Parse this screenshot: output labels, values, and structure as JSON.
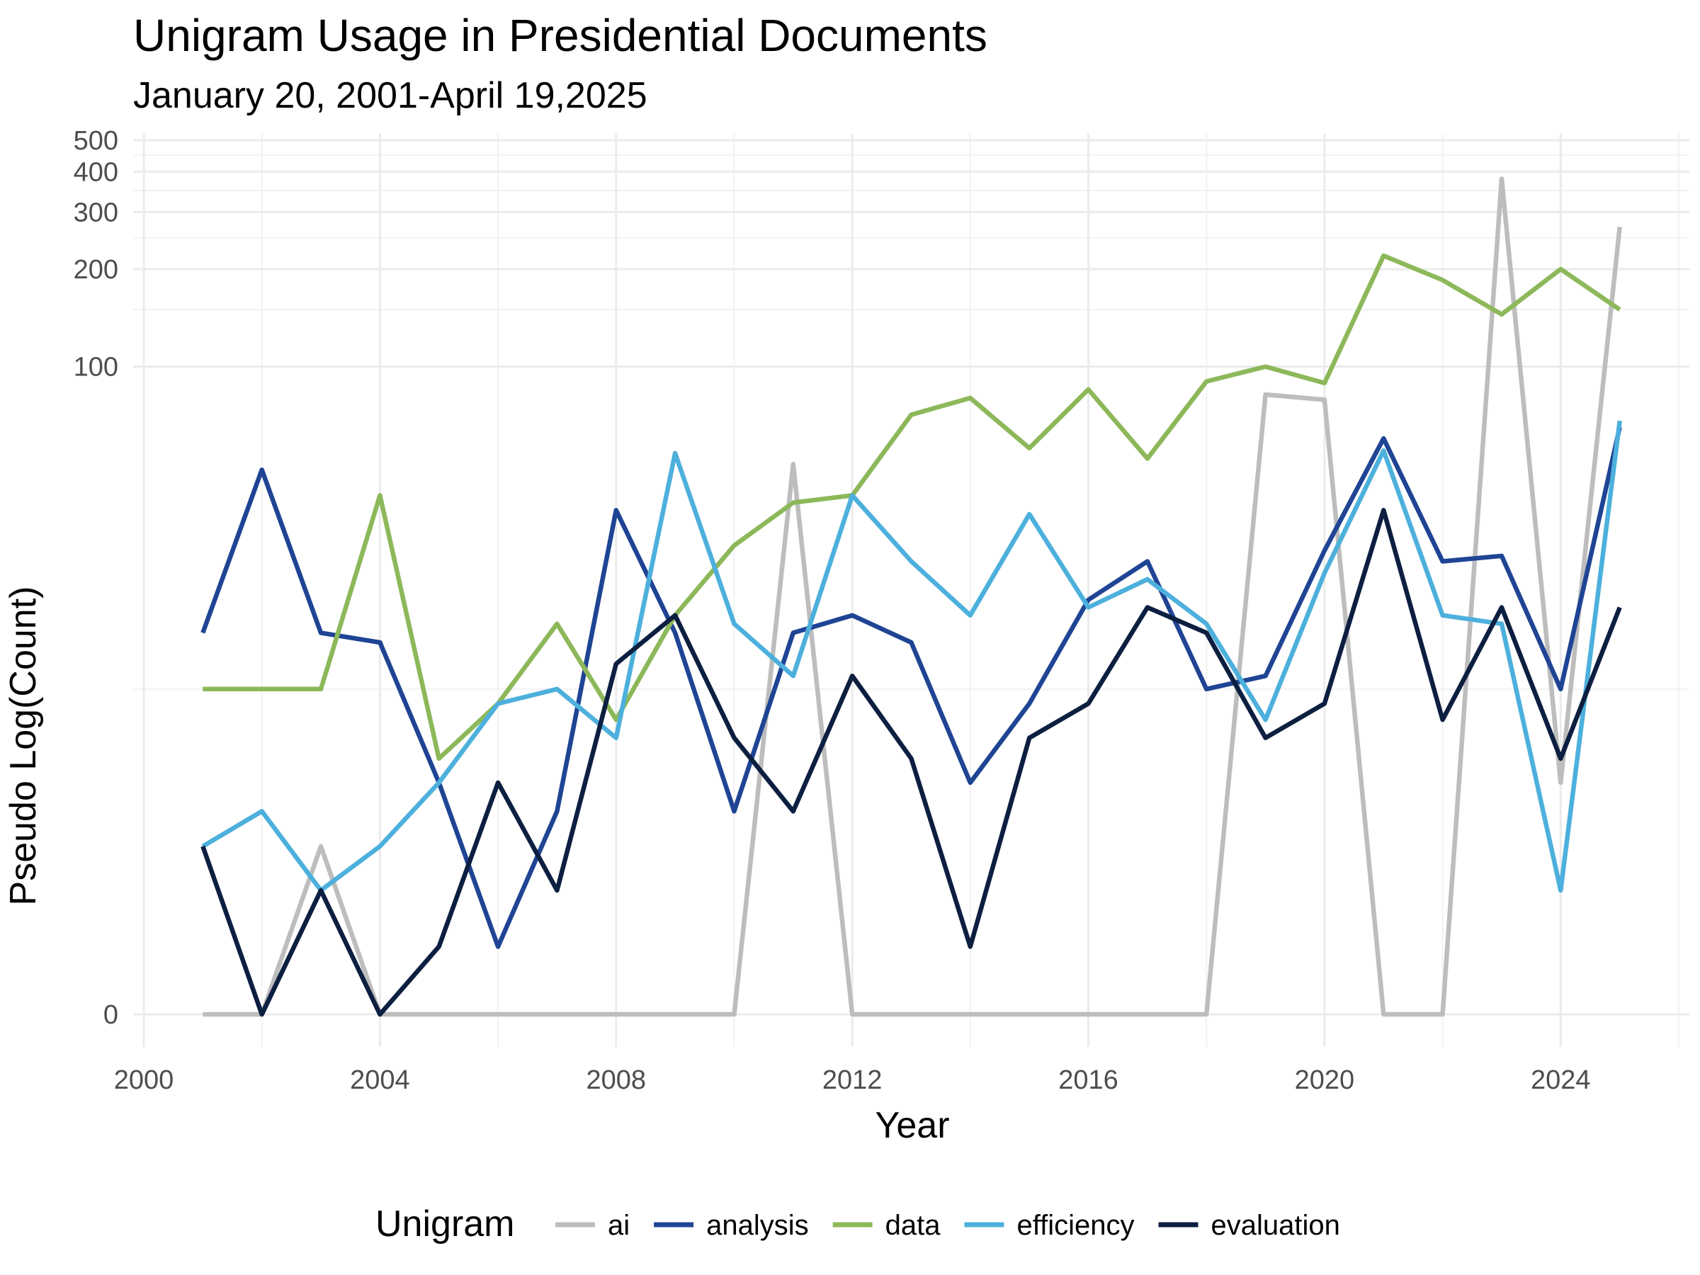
{
  "chart_data": {
    "type": "line",
    "title": "Unigram Usage in Presidential Documents",
    "subtitle": "January 20, 2001-April 19,2025",
    "xlabel": "Year",
    "ylabel": "Pseudo Log(Count)",
    "y_scale": "pseudo-log",
    "xlim": [
      2000,
      2026
    ],
    "ylim": [
      0,
      500
    ],
    "x_ticks": [
      2000,
      2004,
      2008,
      2012,
      2016,
      2020,
      2024
    ],
    "x_tick_labels": [
      "2000",
      "2004",
      "2008",
      "2012",
      "2016",
      "2020",
      "2024"
    ],
    "y_ticks": [
      0,
      100,
      200,
      300,
      400,
      500
    ],
    "y_tick_labels": [
      "0",
      "100",
      "200",
      "300",
      "400",
      "500"
    ],
    "y_minor_ticks": [
      10,
      150,
      250,
      350,
      450
    ],
    "grid": true,
    "legend_title": "Unigram",
    "legend_position": "bottom",
    "x": [
      2001,
      2002,
      2003,
      2004,
      2005,
      2006,
      2007,
      2008,
      2009,
      2010,
      2011,
      2012,
      2013,
      2014,
      2015,
      2016,
      2017,
      2018,
      2019,
      2020,
      2021,
      2022,
      2023,
      2024,
      2025
    ],
    "series": [
      {
        "name": "ai",
        "color": "#bdbdbd",
        "values": [
          0,
          0,
          3,
          0,
          0,
          0,
          0,
          0,
          0,
          0,
          50,
          0,
          0,
          0,
          0,
          0,
          0,
          0,
          82,
          79,
          0,
          0,
          380,
          5,
          270
        ]
      },
      {
        "name": "analysis",
        "color": "#1f4494",
        "values": [
          15,
          48,
          15,
          14,
          5,
          1,
          4,
          36,
          15,
          4,
          15,
          17,
          14,
          5,
          9,
          19,
          25,
          10,
          11,
          27,
          60,
          25,
          26,
          10,
          65
        ]
      },
      {
        "name": "data",
        "color": "#8db85a",
        "values": [
          10,
          10,
          10,
          40,
          6,
          9,
          16,
          8,
          17,
          28,
          38,
          40,
          71,
          80,
          56,
          85,
          52,
          90,
          100,
          89,
          220,
          185,
          145,
          200,
          150
        ]
      },
      {
        "name": "efficiency",
        "color": "#4db0dc",
        "values": [
          3,
          4,
          2,
          3,
          5,
          9,
          10,
          7,
          54,
          16,
          11,
          40,
          25,
          17,
          35,
          18,
          22,
          16,
          8,
          23,
          55,
          17,
          16,
          2,
          68
        ]
      },
      {
        "name": "evaluation",
        "color": "#0d1f40",
        "values": [
          3,
          0,
          2,
          0,
          1,
          5,
          2,
          12,
          17,
          7,
          4,
          11,
          6,
          1,
          7,
          9,
          18,
          15,
          7,
          9,
          36,
          8,
          18,
          6,
          18
        ]
      }
    ]
  }
}
